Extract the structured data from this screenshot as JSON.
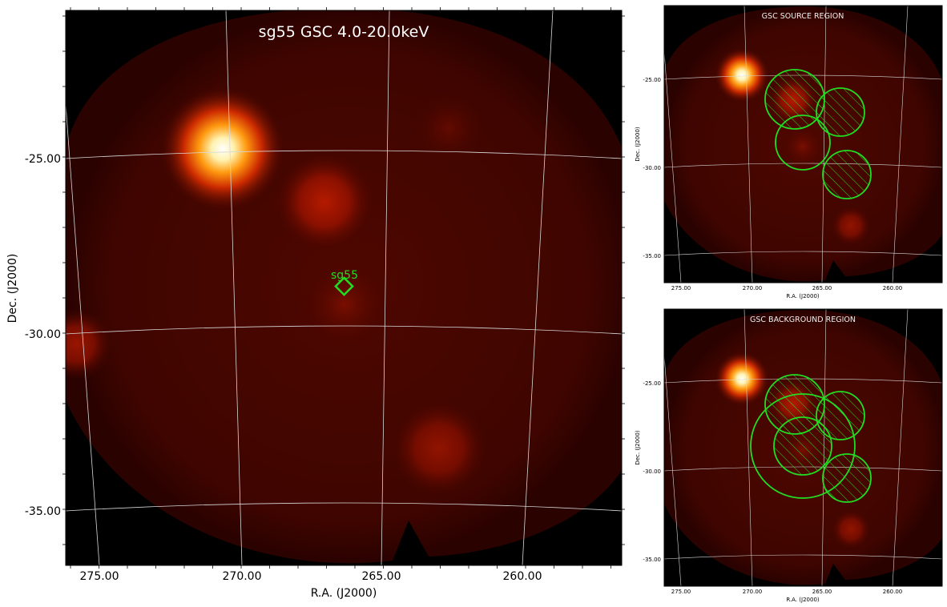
{
  "colors": {
    "sky_dark": "#2e0200",
    "sky_mid": "#4a0600",
    "source_glow": "#ffffff",
    "region_green": "#22dd22",
    "grid_line": "#d8d8d8"
  },
  "chart_data": [
    {
      "type": "heatmap",
      "name": "main-image",
      "title": "sg55 GSC 4.0-20.0keV",
      "xlabel": "R.A. (J2000)",
      "ylabel": "Dec. (J2000)",
      "xticks": [
        "275.00",
        "270.00",
        "265.00",
        "260.00"
      ],
      "yticks": [
        "-25.00",
        "-30.00",
        "-35.00"
      ],
      "grid": true,
      "marker": {
        "label": "sg55",
        "shape": "diamond",
        "ra": 266.4,
        "dec": -28.6
      },
      "sources": [
        {
          "ra": 270.7,
          "dec": -24.8,
          "intensity": 1.0
        },
        {
          "ra": 267.0,
          "dec": -26.2,
          "intensity": 0.35
        },
        {
          "ra": 266.4,
          "dec": -29.0,
          "intensity": 0.2
        },
        {
          "ra": 263.0,
          "dec": -33.3,
          "intensity": 0.2
        },
        {
          "ra": 275.6,
          "dec": -30.5,
          "intensity": 0.15
        }
      ]
    },
    {
      "type": "heatmap",
      "name": "source-region",
      "title": "GSC SOURCE REGION",
      "xlabel": "R.A. (J2000)",
      "ylabel": "Dec. (J2000)",
      "xticks": [
        "275.00",
        "270.00",
        "265.00",
        "260.00"
      ],
      "yticks": [
        "-25.00",
        "-30.00",
        "-35.00"
      ],
      "grid": true,
      "regions": [
        {
          "ra": 267.0,
          "dec": -26.2,
          "radius_deg": 2.1,
          "hatched": true
        },
        {
          "ra": 263.5,
          "dec": -26.9,
          "radius_deg": 1.7,
          "hatched": true
        },
        {
          "ra": 266.4,
          "dec": -28.6,
          "radius_deg": 1.9,
          "hatched": false
        },
        {
          "ra": 263.0,
          "dec": -30.4,
          "radius_deg": 1.7,
          "hatched": true
        }
      ]
    },
    {
      "type": "heatmap",
      "name": "background-region",
      "title": "GSC BACKGROUND REGION",
      "xlabel": "R.A. (J2000)",
      "ylabel": "Dec. (J2000)",
      "xticks": [
        "275.00",
        "270.00",
        "265.00",
        "260.00"
      ],
      "yticks": [
        "-25.00",
        "-30.00",
        "-35.00"
      ],
      "grid": true,
      "regions": [
        {
          "ra": 267.0,
          "dec": -26.2,
          "radius_deg": 2.1,
          "hatched": true
        },
        {
          "ra": 263.5,
          "dec": -26.9,
          "radius_deg": 1.7,
          "hatched": true
        },
        {
          "ra": 266.4,
          "dec": -28.6,
          "radius_deg": 2.0,
          "hatched": true
        },
        {
          "ra": 263.0,
          "dec": -30.4,
          "radius_deg": 1.7,
          "hatched": true
        },
        {
          "ra": 266.4,
          "dec": -28.6,
          "radius_deg": 3.5,
          "hatched": false
        }
      ]
    }
  ]
}
